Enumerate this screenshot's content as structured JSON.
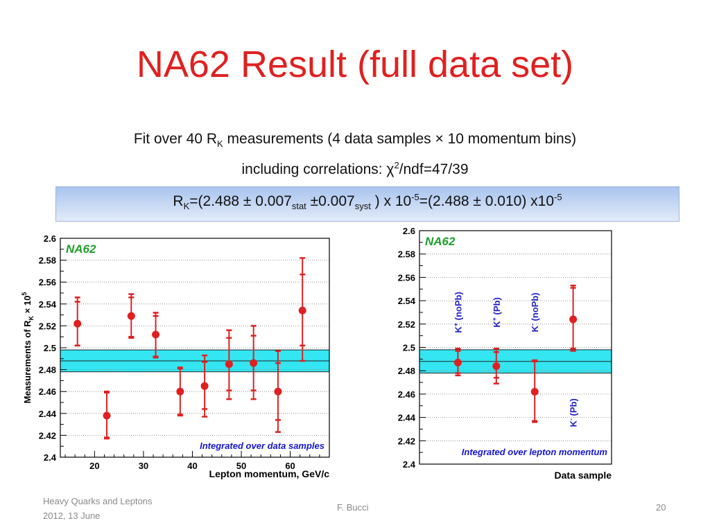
{
  "slide": {
    "title": "NA62 Result (full data set)",
    "line1": {
      "a": "Fit over 40 R",
      "sub": "K",
      "b": " measurements (4 data samples × 10 momentum bins)"
    },
    "line2": {
      "a": "including correlations: χ",
      "sup": "2",
      "b": "/ndf=47/39"
    },
    "result": {
      "a": "R",
      "sub1": "K",
      "b": "=(2.488 ± 0.007",
      "sub2": "stat",
      "c": " ±0.007",
      "sub3": "syst",
      "d": " ) x 10",
      "sup1": "-5",
      "e": "=(2.488 ± 0.010) x10",
      "sup2": "-5"
    }
  },
  "footer": {
    "left_line1": "Heavy Quarks and Leptons",
    "left_line2": "2012, 13 June",
    "center": "F. Bucci",
    "page": "20"
  },
  "chart_data": [
    {
      "type": "scatter",
      "label": "NA62",
      "annotation": "Integrated over data samples",
      "xlabel": "Lepton momentum, GeV/c",
      "ylabel": {
        "a": "Measurements of R",
        "sub": "K",
        "b": " × 10",
        "sup": "5"
      },
      "xlim": [
        13,
        68
      ],
      "ylim": [
        2.4,
        2.6
      ],
      "xticks": [
        20,
        30,
        40,
        50,
        60
      ],
      "yticks": [
        2.4,
        2.42,
        2.44,
        2.46,
        2.48,
        2.5,
        2.52,
        2.54,
        2.56,
        2.58,
        2.6
      ],
      "band": [
        2.478,
        2.498
      ],
      "central": 2.488,
      "grid": "horizontal",
      "colors": {
        "points": "#e02020",
        "band": "#33e6f2",
        "label": "#1f9e2a",
        "annotation": "#1515d0"
      },
      "points": [
        {
          "x": 16.5,
          "y": 2.522,
          "stat": [
            2.502,
            2.542
          ],
          "total": [
            2.502,
            2.546
          ]
        },
        {
          "x": 22.5,
          "y": 2.438,
          "stat": [
            2.418,
            2.459
          ],
          "total": [
            2.417,
            2.46
          ]
        },
        {
          "x": 27.5,
          "y": 2.529,
          "stat": [
            2.51,
            2.546
          ],
          "total": [
            2.509,
            2.549
          ]
        },
        {
          "x": 32.5,
          "y": 2.512,
          "stat": [
            2.492,
            2.529
          ],
          "total": [
            2.491,
            2.532
          ]
        },
        {
          "x": 37.5,
          "y": 2.46,
          "stat": [
            2.439,
            2.481
          ],
          "total": [
            2.438,
            2.482
          ]
        },
        {
          "x": 42.5,
          "y": 2.465,
          "stat": [
            2.444,
            2.487
          ],
          "total": [
            2.437,
            2.493
          ]
        },
        {
          "x": 47.5,
          "y": 2.485,
          "stat": [
            2.461,
            2.509
          ],
          "total": [
            2.453,
            2.516
          ]
        },
        {
          "x": 52.5,
          "y": 2.486,
          "stat": [
            2.461,
            2.511
          ],
          "total": [
            2.453,
            2.52
          ]
        },
        {
          "x": 57.5,
          "y": 2.46,
          "stat": [
            2.434,
            2.486
          ],
          "total": [
            2.423,
            2.497
          ]
        },
        {
          "x": 62.5,
          "y": 2.534,
          "stat": [
            2.502,
            2.567
          ],
          "total": [
            2.488,
            2.582
          ]
        }
      ]
    },
    {
      "type": "scatter",
      "label": "NA62",
      "annotation": "Integrated over lepton momentum",
      "xlabel": "Data sample",
      "xlim": [
        0,
        5
      ],
      "ylim": [
        2.4,
        2.6
      ],
      "yticks": [
        2.4,
        2.42,
        2.44,
        2.46,
        2.48,
        2.5,
        2.52,
        2.54,
        2.56,
        2.58,
        2.6
      ],
      "band": [
        2.478,
        2.498
      ],
      "central": 2.488,
      "grid": "horizontal",
      "colors": {
        "points": "#e02020",
        "band": "#33e6f2",
        "label": "#1f9e2a",
        "annotation": "#1515d0",
        "sample_labels": "#2222c8"
      },
      "samples": [
        {
          "x": 1,
          "name": "K",
          "charge": "+",
          "tag": "(noPb)",
          "label_y": 2.53
        },
        {
          "x": 2,
          "name": "K",
          "charge": "+",
          "tag": "(Pb)",
          "label_y": 2.53
        },
        {
          "x": 3,
          "name": "K",
          "charge": "-",
          "tag": "(noPb)",
          "label_y": 2.53
        },
        {
          "x": 4,
          "name": "K",
          "charge": "-",
          "tag": "(Pb)",
          "label_y": 2.444
        }
      ],
      "points": [
        {
          "x": 1,
          "y": 2.487,
          "stat": [
            2.478,
            2.497
          ],
          "total": [
            2.476,
            2.499
          ]
        },
        {
          "x": 2,
          "y": 2.484,
          "stat": [
            2.474,
            2.496
          ],
          "total": [
            2.469,
            2.499
          ]
        },
        {
          "x": 3,
          "y": 2.462,
          "stat": [
            2.437,
            2.488
          ],
          "total": [
            2.436,
            2.489
          ]
        },
        {
          "x": 4,
          "y": 2.524,
          "stat": [
            2.499,
            2.551
          ],
          "total": [
            2.497,
            2.553
          ]
        }
      ]
    }
  ]
}
